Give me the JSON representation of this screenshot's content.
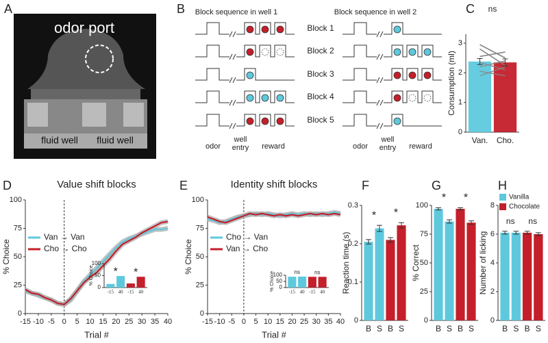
{
  "panel_a": {
    "letter": "A",
    "labels": [
      "odor port",
      "fluid well",
      "fluid well"
    ]
  },
  "panel_b": {
    "letter": "B",
    "headings": [
      "Block sequence in well 1",
      "Block sequence in well 2"
    ],
    "blocks": [
      "Block 1",
      "Block 2",
      "Block 3",
      "Block 4",
      "Block 5"
    ],
    "event_labels": [
      [
        "odor",
        "well",
        "entry",
        "reward"
      ],
      [
        "odor",
        "well",
        "entry",
        "reward"
      ]
    ]
  },
  "chart_data": [
    {
      "type": "bar",
      "panel": "C",
      "title": "ns",
      "ylabel": "Consumption (ml)",
      "categories": [
        "Van.",
        "Cho."
      ],
      "values": [
        2.38,
        2.35
      ],
      "errors": [
        0.1,
        0.12
      ],
      "colors": [
        "#5ec9dd",
        "#c41f2a"
      ],
      "ylim": [
        0,
        3.3
      ],
      "yticks": [
        0,
        1,
        2,
        3
      ],
      "pairs": [
        [
          2.95,
          2.5
        ],
        [
          2.8,
          2.25
        ],
        [
          2.55,
          2.7
        ],
        [
          2.35,
          2.1
        ],
        [
          2.2,
          2.4
        ],
        [
          2.05,
          1.9
        ],
        [
          1.9,
          2.2
        ]
      ]
    },
    {
      "type": "line",
      "panel": "D",
      "title": "Value shift blocks",
      "xlabel": "Trial #",
      "ylabel": "% Choice",
      "x": [
        -15,
        -12.5,
        -10,
        -7.5,
        -5,
        -2.5,
        0,
        2.5,
        5,
        7.5,
        10,
        12.5,
        15,
        17.5,
        20,
        22.5,
        25,
        27.5,
        30,
        32.5,
        35,
        37.5,
        40
      ],
      "series": [
        {
          "name": "Van → Van",
          "color": "#5ec9dd",
          "values": [
            20,
            18,
            16,
            14,
            12,
            9,
            8,
            12,
            20,
            28,
            34,
            40,
            46,
            52,
            58,
            63,
            66,
            68,
            70,
            72,
            74,
            74,
            75
          ]
        },
        {
          "name": "Cho → Cho",
          "color": "#c41f2a",
          "values": [
            21,
            18,
            17,
            14,
            12,
            9,
            8,
            13,
            20,
            27,
            32,
            36,
            42,
            48,
            55,
            61,
            64,
            67,
            71,
            74,
            77,
            80,
            81
          ]
        }
      ],
      "xlim": [
        -15,
        40
      ],
      "xticks": [
        -15,
        -10,
        -5,
        0,
        5,
        10,
        15,
        20,
        25,
        30,
        35,
        40
      ],
      "ylim": [
        0,
        100
      ],
      "yticks": [
        0,
        25,
        50,
        75,
        100
      ]
    },
    {
      "type": "bar",
      "ylabel": "% Choice",
      "categories": [
        "-15",
        "40",
        "-15",
        "40"
      ],
      "values": [
        15,
        48,
        17,
        45
      ],
      "colors": [
        "#5ec9dd",
        "#5ec9dd",
        "#c41f2a",
        "#c41f2a"
      ],
      "annotations": [
        "*",
        "*"
      ],
      "ylim": [
        0,
        100
      ],
      "yticks": [
        0,
        50,
        100
      ]
    },
    {
      "type": "line",
      "panel": "E",
      "title": "Identity shift blocks",
      "xlabel": "Trial #",
      "ylabel": "% Choice",
      "x": [
        -15,
        -12.5,
        -10,
        -7.5,
        -5,
        -2.5,
        0,
        2.5,
        5,
        7.5,
        10,
        12.5,
        15,
        17.5,
        20,
        22.5,
        25,
        27.5,
        30,
        32.5,
        35,
        37.5,
        40
      ],
      "series": [
        {
          "name": "Cho → Van",
          "color": "#5ec9dd",
          "values": [
            83,
            82,
            80,
            81,
            83,
            85,
            86,
            87,
            88,
            87,
            88,
            87,
            86,
            87,
            88,
            87,
            88,
            87,
            88,
            87,
            88,
            89,
            88
          ]
        },
        {
          "name": "Van → Cho",
          "color": "#c41f2a",
          "values": [
            85,
            83,
            81,
            80,
            82,
            84,
            86,
            88,
            87,
            88,
            87,
            86,
            87,
            86,
            87,
            86,
            87,
            88,
            87,
            88,
            87,
            88,
            87
          ]
        }
      ],
      "xlim": [
        -15,
        40
      ],
      "xticks": [
        -15,
        -10,
        -5,
        0,
        5,
        10,
        15,
        20,
        25,
        30,
        35,
        40
      ],
      "ylim": [
        0,
        100
      ],
      "yticks": [
        0,
        25,
        50,
        75,
        100
      ]
    },
    {
      "type": "bar",
      "ylabel": "% Choice",
      "categories": [
        "-15",
        "40",
        "-15",
        "40"
      ],
      "values": [
        88,
        89,
        87,
        87
      ],
      "colors": [
        "#5ec9dd",
        "#5ec9dd",
        "#c41f2a",
        "#c41f2a"
      ],
      "annotations": [
        "ns",
        "ns"
      ],
      "ylim": [
        0,
        100
      ],
      "yticks": [
        0,
        50,
        100
      ]
    },
    {
      "type": "bar",
      "panel": "F",
      "ylabel": "Reaction time (s)",
      "categories": [
        "B",
        "S",
        "B",
        "S"
      ],
      "values": [
        0.205,
        0.24,
        0.21,
        0.248
      ],
      "errors": [
        0.006,
        0.008,
        0.006,
        0.007
      ],
      "colors": [
        "#5ec9dd",
        "#5ec9dd",
        "#c41f2a",
        "#c41f2a"
      ],
      "annotations": [
        "*",
        "*"
      ],
      "ylim": [
        0,
        0.3
      ],
      "yticks": [
        0,
        0.1,
        0.2,
        0.3
      ]
    },
    {
      "type": "bar",
      "panel": "G",
      "ylabel": "% Correct",
      "categories": [
        "B",
        "S",
        "B",
        "S"
      ],
      "values": [
        97,
        86,
        97,
        85
      ],
      "errors": [
        1,
        1.5,
        1,
        1.5
      ],
      "colors": [
        "#5ec9dd",
        "#5ec9dd",
        "#c41f2a",
        "#c41f2a"
      ],
      "annotations": [
        "*",
        "*"
      ],
      "ylim": [
        0,
        100
      ],
      "yticks": [
        0,
        25,
        50,
        75,
        100
      ]
    },
    {
      "type": "bar",
      "panel": "H",
      "ylabel": "Number of licking",
      "categories": [
        "B",
        "S",
        "B",
        "S"
      ],
      "values": [
        6.1,
        6.1,
        6.1,
        6.0
      ],
      "errors": [
        0.1,
        0.1,
        0.1,
        0.1
      ],
      "colors": [
        "#5ec9dd",
        "#5ec9dd",
        "#c41f2a",
        "#c41f2a"
      ],
      "annotations": [
        "ns",
        "ns"
      ],
      "legend": [
        {
          "name": "Vanilla",
          "color": "#5ec9dd"
        },
        {
          "name": "Chocolate",
          "color": "#c41f2a"
        }
      ],
      "ylim": [
        0,
        8
      ],
      "yticks": [
        0,
        2,
        4,
        6,
        8
      ]
    }
  ]
}
